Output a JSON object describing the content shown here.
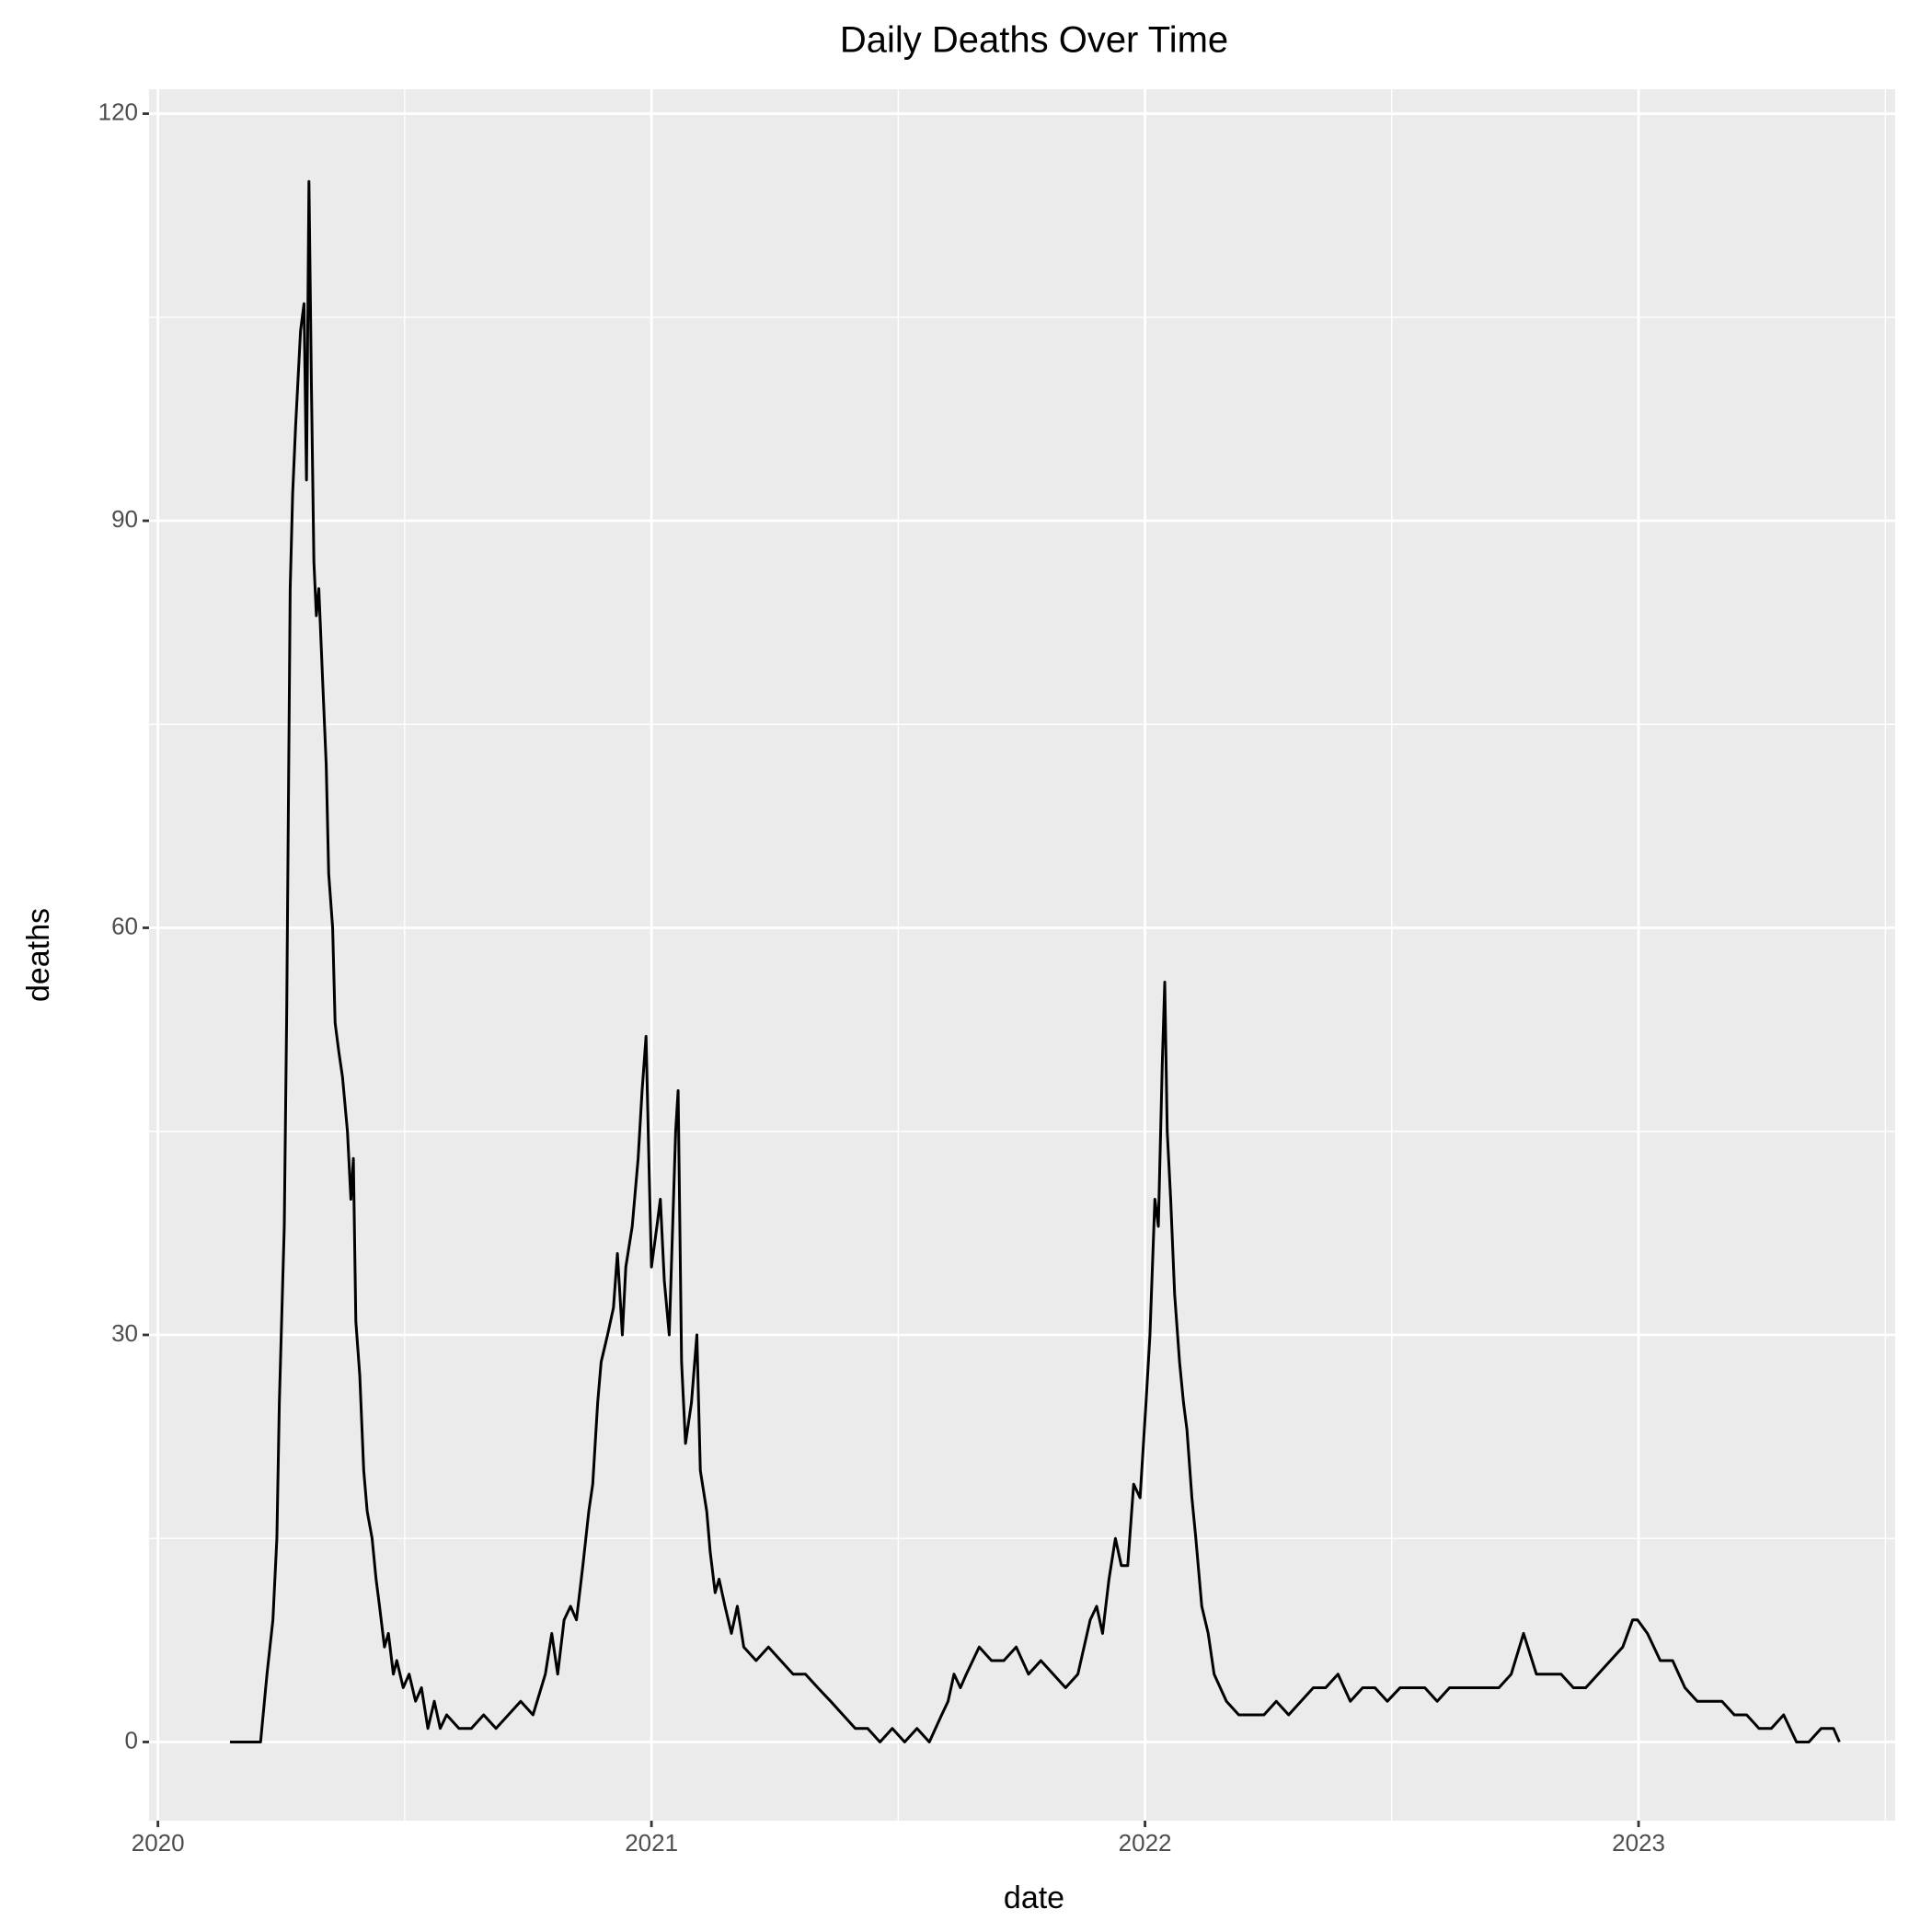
{
  "chart_data": {
    "type": "line",
    "title": "Daily Deaths Over Time",
    "x_label": "date",
    "y_label": "deaths",
    "color": "#000000",
    "grid": true,
    "xlim": [
      2019.982,
      2023.52
    ],
    "xticks": [
      2020,
      2021,
      2022,
      2023
    ],
    "x_minor_grid": [
      2020.5,
      2021.5,
      2022.5,
      2023.5
    ],
    "ylim": [
      -5.8,
      121.8
    ],
    "yticks": [
      0,
      30,
      60,
      90,
      120
    ],
    "y_minor_grid": [
      15,
      45,
      75,
      105
    ],
    "x": [
      2020.146,
      2020.208,
      2020.221,
      2020.233,
      2020.241,
      2020.246,
      2020.256,
      2020.261,
      2020.268,
      2020.273,
      2020.279,
      2020.289,
      2020.296,
      2020.301,
      2020.306,
      2020.311,
      2020.316,
      2020.321,
      2020.326,
      2020.334,
      2020.341,
      2020.346,
      2020.354,
      2020.359,
      2020.366,
      2020.374,
      2020.384,
      2020.391,
      2020.396,
      2020.401,
      2020.409,
      2020.417,
      2020.424,
      2020.434,
      2020.442,
      2020.449,
      2020.459,
      2020.467,
      2020.477,
      2020.484,
      2020.497,
      2020.509,
      2020.522,
      2020.534,
      2020.547,
      2020.56,
      2020.572,
      2020.585,
      2020.61,
      2020.635,
      2020.66,
      2020.685,
      2020.71,
      2020.735,
      2020.76,
      2020.785,
      2020.798,
      2020.81,
      2020.823,
      2020.836,
      2020.848,
      2020.861,
      2020.873,
      2020.881,
      2020.891,
      2020.898,
      2020.911,
      2020.923,
      2020.931,
      2020.941,
      2020.948,
      2020.961,
      2020.973,
      2020.981,
      2020.989,
      2020.996,
      2021.0,
      2021.011,
      2021.018,
      2021.026,
      2021.036,
      2021.049,
      2021.054,
      2021.061,
      2021.069,
      2021.081,
      2021.092,
      2021.099,
      2021.112,
      2021.119,
      2021.129,
      2021.137,
      2021.149,
      2021.162,
      2021.174,
      2021.187,
      2021.212,
      2021.237,
      2021.262,
      2021.287,
      2021.312,
      2021.337,
      2021.363,
      2021.388,
      2021.413,
      2021.438,
      2021.463,
      2021.488,
      2021.513,
      2021.538,
      2021.563,
      2021.588,
      2021.601,
      2021.613,
      2021.626,
      2021.638,
      2021.664,
      2021.689,
      2021.714,
      2021.739,
      2021.764,
      2021.789,
      2021.814,
      2021.839,
      2021.864,
      2021.889,
      2021.902,
      2021.914,
      2021.927,
      2021.94,
      2021.952,
      2021.965,
      2021.977,
      2021.99,
      2022.002,
      2022.01,
      2022.02,
      2022.027,
      2022.035,
      2022.04,
      2022.045,
      2022.052,
      2022.06,
      2022.07,
      2022.078,
      2022.085,
      2022.095,
      2022.103,
      2022.115,
      2022.128,
      2022.14,
      2022.165,
      2022.19,
      2022.215,
      2022.241,
      2022.266,
      2022.291,
      2022.316,
      2022.341,
      2022.366,
      2022.391,
      2022.416,
      2022.441,
      2022.466,
      2022.491,
      2022.517,
      2022.542,
      2022.567,
      2022.592,
      2022.617,
      2022.642,
      2022.667,
      2022.692,
      2022.717,
      2022.742,
      2022.767,
      2022.793,
      2022.818,
      2022.843,
      2022.868,
      2022.893,
      2022.918,
      2022.943,
      2022.968,
      2022.988,
      2022.998,
      2023.018,
      2023.044,
      2023.069,
      2023.094,
      2023.119,
      2023.144,
      2023.169,
      2023.194,
      2023.219,
      2023.244,
      2023.269,
      2023.294,
      2023.307,
      2023.32,
      2023.345,
      2023.37,
      2023.395,
      2023.407
    ],
    "values": [
      0,
      0,
      5,
      9,
      15,
      25,
      38,
      54,
      85,
      92,
      97,
      104,
      106,
      93,
      115,
      100,
      87,
      83,
      85,
      78,
      72,
      64,
      60,
      53,
      51,
      49,
      45,
      40,
      43,
      31,
      27,
      20,
      17,
      15,
      12,
      10,
      7,
      8,
      5,
      6,
      4,
      5,
      3,
      4,
      1,
      3,
      1,
      2,
      1,
      1,
      2,
      1,
      2,
      3,
      2,
      5,
      8,
      5,
      9,
      10,
      9,
      13,
      17,
      19,
      25,
      28,
      30,
      32,
      36,
      30,
      35,
      38,
      43,
      48,
      52,
      41,
      35,
      38,
      40,
      34,
      30,
      45,
      48,
      28,
      22,
      25,
      30,
      20,
      17,
      14,
      11,
      12,
      10,
      8,
      10,
      7,
      6,
      7,
      6,
      5,
      5,
      4,
      3,
      2,
      1,
      1,
      0,
      1,
      0,
      1,
      0,
      2,
      3,
      5,
      4,
      5,
      7,
      6,
      6,
      7,
      5,
      6,
      5,
      4,
      5,
      9,
      10,
      8,
      12,
      15,
      13,
      13,
      19,
      18,
      25,
      30,
      40,
      38,
      50,
      56,
      45,
      40,
      33,
      28,
      25,
      23,
      18,
      15,
      10,
      8,
      5,
      3,
      2,
      2,
      2,
      3,
      2,
      3,
      4,
      4,
      5,
      3,
      4,
      4,
      3,
      4,
      4,
      4,
      3,
      4,
      4,
      4,
      4,
      4,
      5,
      8,
      5,
      5,
      5,
      4,
      4,
      5,
      6,
      7,
      9,
      9,
      8,
      6,
      6,
      4,
      3,
      3,
      3,
      2,
      2,
      1,
      1,
      2,
      1,
      0,
      0,
      1,
      1,
      0
    ]
  }
}
